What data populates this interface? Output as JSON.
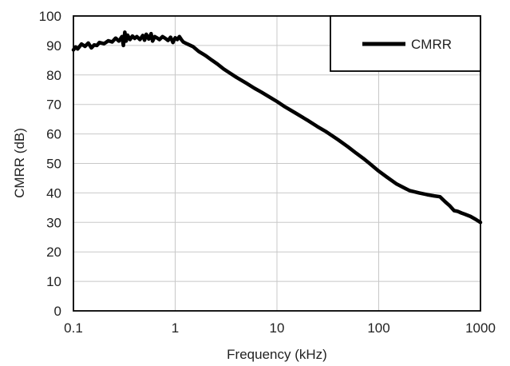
{
  "chart_data": {
    "type": "line",
    "title": "",
    "xlabel": "Frequency (kHz)",
    "ylabel": "CMRR (dB)",
    "xscale": "log",
    "xlim": [
      0.1,
      1000
    ],
    "ylim": [
      0,
      100
    ],
    "grid": true,
    "legend_position": "top-right",
    "x_ticks": [
      "0.1",
      "1",
      "10",
      "100",
      "1000"
    ],
    "y_ticks": [
      "0",
      "10",
      "20",
      "30",
      "40",
      "50",
      "60",
      "70",
      "80",
      "90",
      "100"
    ],
    "line_color": "#000000",
    "series": [
      {
        "name": "CMRR",
        "x": [
          0.1,
          0.105,
          0.11,
          0.12,
          0.13,
          0.14,
          0.15,
          0.16,
          0.17,
          0.18,
          0.2,
          0.22,
          0.24,
          0.26,
          0.28,
          0.3,
          0.31,
          0.32,
          0.33,
          0.34,
          0.36,
          0.38,
          0.4,
          0.42,
          0.45,
          0.48,
          0.5,
          0.52,
          0.55,
          0.58,
          0.6,
          0.63,
          0.66,
          0.7,
          0.75,
          0.8,
          0.85,
          0.9,
          0.95,
          1.0,
          1.05,
          1.1,
          1.15,
          1.2,
          1.3,
          1.5,
          1.7,
          2,
          2.3,
          2.6,
          3,
          3.5,
          4,
          5,
          6,
          7,
          8,
          10,
          12,
          15,
          20,
          25,
          30,
          40,
          50,
          60,
          70,
          80,
          100,
          120,
          150,
          200,
          250,
          300,
          350,
          400,
          450,
          500,
          550,
          600,
          650,
          700,
          800,
          900,
          1000
        ],
        "y": [
          88.5,
          89.5,
          88.8,
          90.5,
          89.7,
          90.8,
          89.2,
          90.2,
          90.0,
          91.0,
          90.6,
          91.6,
          91.2,
          92.5,
          91.5,
          93.0,
          90.0,
          94.5,
          91.5,
          93.5,
          92.0,
          93.2,
          92.4,
          93.0,
          92.0,
          93.4,
          91.8,
          93.8,
          92.2,
          94.0,
          91.5,
          93.0,
          92.6,
          92.0,
          93.0,
          92.4,
          91.7,
          92.8,
          91.0,
          92.6,
          92.0,
          93.0,
          92.0,
          91.2,
          90.6,
          89.6,
          88.0,
          86.5,
          85.0,
          83.7,
          82.0,
          80.5,
          79.2,
          77.2,
          75.5,
          74.2,
          73.0,
          71.0,
          69.2,
          67.2,
          64.6,
          62.5,
          60.9,
          58.0,
          55.6,
          53.5,
          51.8,
          50.2,
          47.4,
          45.4,
          43.0,
          40.8,
          40.0,
          39.4,
          39.0,
          38.7,
          37.0,
          35.6,
          34.0,
          33.7,
          33.2,
          32.8,
          32.0,
          31.0,
          30.0
        ]
      }
    ]
  }
}
